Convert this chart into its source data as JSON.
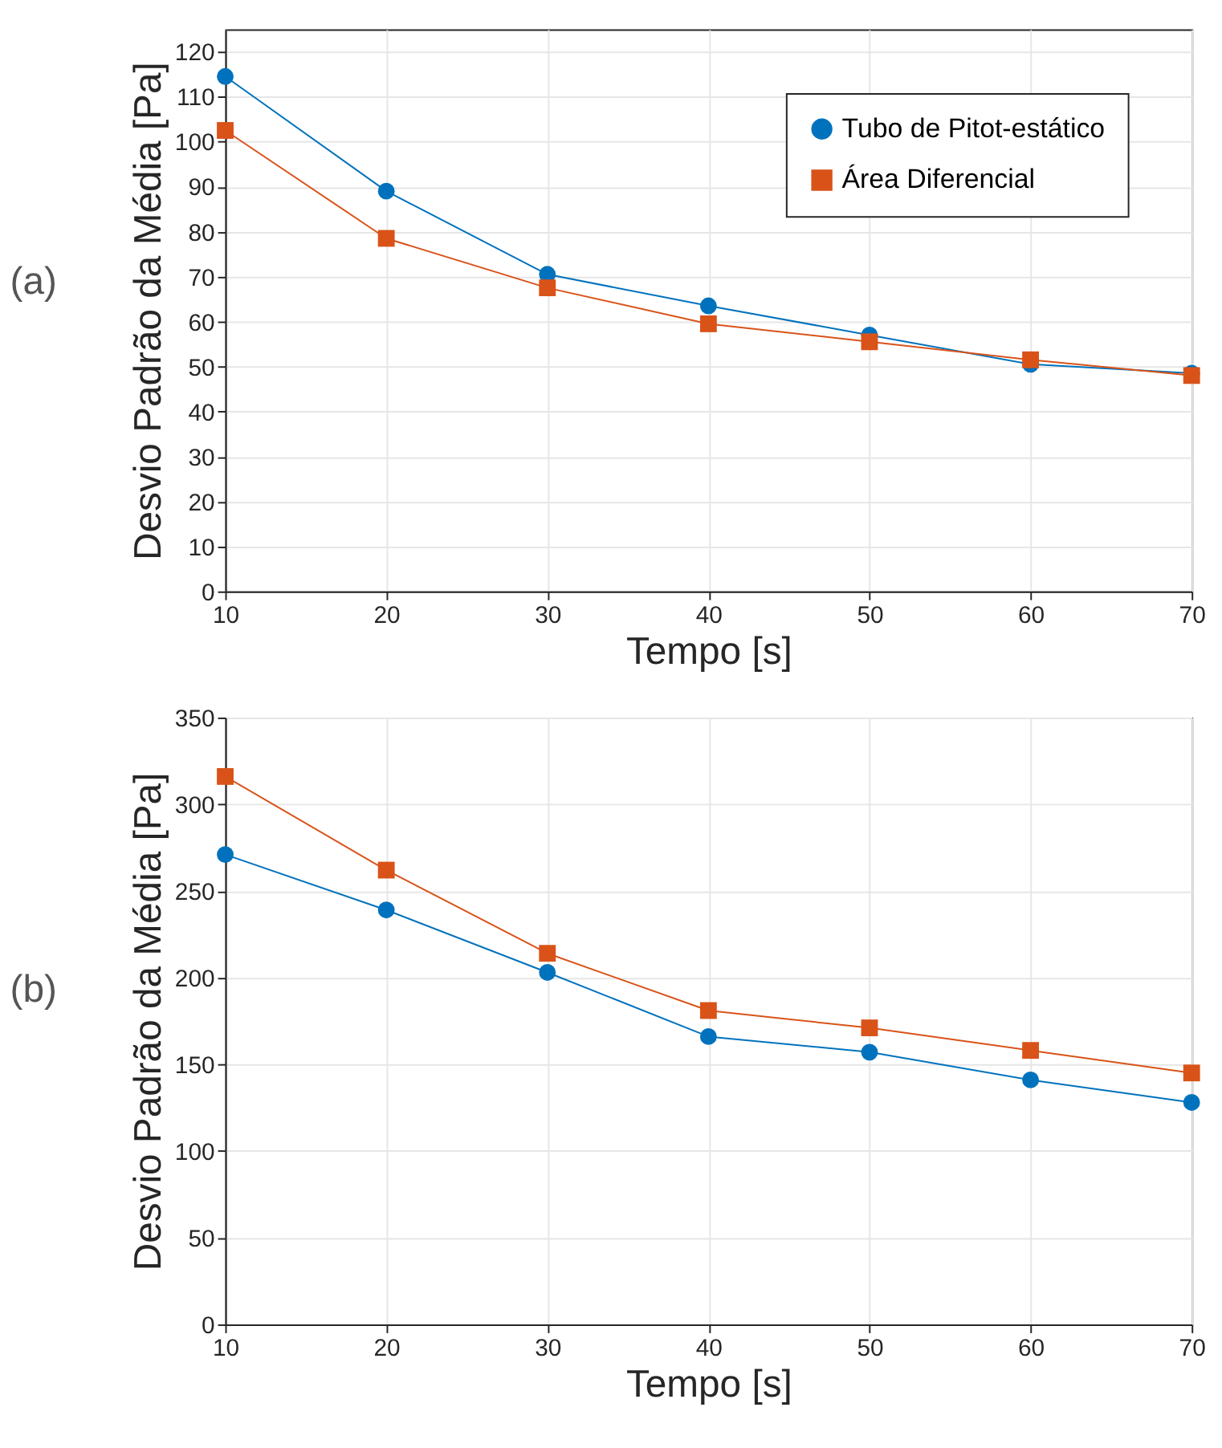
{
  "chart_data": [
    {
      "type": "line",
      "x": [
        10,
        20,
        30,
        40,
        50,
        60,
        70
      ],
      "xlabel": "Tempo [s]",
      "ylabel": "Desvio Padrão da Média [Pa]",
      "xlim": [
        10,
        70
      ],
      "xticks": [
        10,
        20,
        30,
        40,
        50,
        60,
        70
      ],
      "ylim": [
        0,
        125
      ],
      "yticks": [
        0,
        10,
        20,
        30,
        40,
        50,
        60,
        70,
        80,
        90,
        100,
        110,
        120
      ],
      "grid": true,
      "legend": "top right",
      "line_style": "solid",
      "annotations": [
        "(a)"
      ],
      "series": [
        {
          "name": "Tubo de Pitot-estático",
          "color": "#0072bd",
          "marker": "circle",
          "values": [
            114.5,
            89,
            70.5,
            63.5,
            57,
            50.5,
            48.5
          ]
        },
        {
          "name": "Área Diferencial",
          "color": "#d95319",
          "marker": "square",
          "values": [
            102.5,
            78.5,
            67.5,
            59.5,
            55.5,
            51.5,
            48
          ]
        }
      ]
    },
    {
      "type": "line",
      "x": [
        10,
        20,
        30,
        40,
        50,
        60,
        70
      ],
      "xlabel": "Tempo [s]",
      "ylabel": "Desvio Padrão da Média [Pa]",
      "xlim": [
        10,
        70
      ],
      "xticks": [
        10,
        20,
        30,
        40,
        50,
        60,
        70
      ],
      "ylim": [
        0,
        350
      ],
      "yticks": [
        0,
        50,
        100,
        150,
        200,
        250,
        300,
        350
      ],
      "grid": true,
      "legend": "top right",
      "line_style": "solid",
      "annotations": [
        "(b)"
      ],
      "series": [
        {
          "name": "Tubo de Pitot-estático",
          "color": "#0072bd",
          "marker": "circle",
          "values": [
            271,
            239,
            203,
            166,
            157,
            141,
            128
          ]
        },
        {
          "name": "Área Diferencial",
          "color": "#d95319",
          "marker": "square",
          "values": [
            316,
            262,
            214,
            181,
            171,
            158,
            145
          ]
        }
      ]
    }
  ]
}
